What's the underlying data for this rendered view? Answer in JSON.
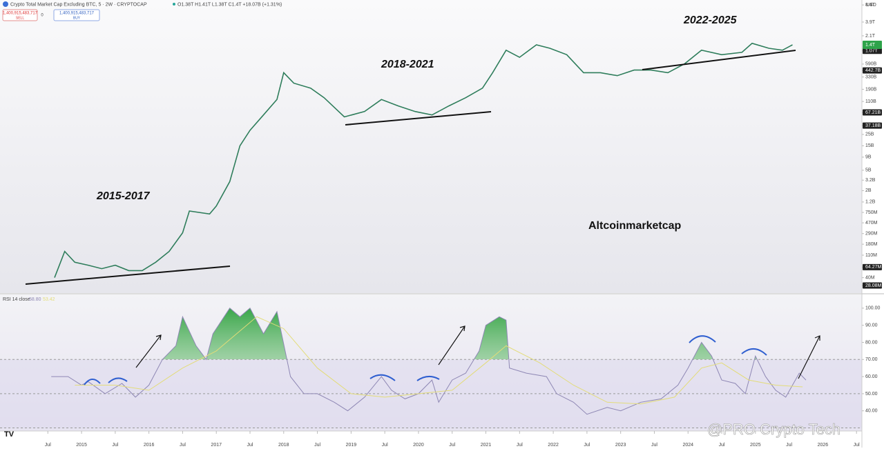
{
  "header": {
    "symbol": "Crypto Total Market Cap Excluding BTC, 5 · 2W · CRYPTOCAP",
    "ohlc": "O1.38T H1.41T L1.38T C1.4T +18.07B (+1.31%)",
    "sell_price": "1,400,915,483,717",
    "sell": "SELL",
    "spread": "0",
    "buy_price": "1,400,915,483,717",
    "buy": "BUY",
    "currency": "USD"
  },
  "chart_data": [
    {
      "type": "line",
      "log_scale": true,
      "color": "#2e7d5b",
      "x": [
        2014.6,
        2014.75,
        2014.9,
        2015.1,
        2015.3,
        2015.5,
        2015.7,
        2015.9,
        2016.1,
        2016.3,
        2016.5,
        2016.6,
        2016.9,
        2017.0,
        2017.2,
        2017.35,
        2017.5,
        2017.7,
        2017.9,
        2018.0,
        2018.15,
        2018.4,
        2018.6,
        2018.9,
        2019.2,
        2019.45,
        2019.7,
        2019.95,
        2020.2,
        2020.45,
        2020.7,
        2020.95,
        2021.1,
        2021.3,
        2021.5,
        2021.75,
        2021.95,
        2022.2,
        2022.45,
        2022.7,
        2022.95,
        2023.2,
        2023.45,
        2023.7,
        2023.95,
        2024.2,
        2024.5,
        2024.8,
        2024.95,
        2025.2,
        2025.4,
        2025.55
      ],
      "values": [
        40000000,
        130000000,
        80000000,
        70000000,
        60000000,
        70000000,
        55000000,
        55000000,
        80000000,
        130000000,
        300000000,
        800000000,
        700000000,
        1000000000,
        3000000000,
        15000000000,
        30000000000,
        60000000000,
        120000000000,
        400000000000,
        250000000000,
        200000000000,
        130000000000,
        55000000000,
        70000000000,
        120000000000,
        90000000000,
        70000000000,
        60000000000,
        90000000000,
        130000000000,
        200000000000,
        400000000000,
        1100000000000,
        800000000000,
        1400000000000,
        1200000000000,
        900000000000,
        400000000000,
        400000000000,
        350000000000,
        450000000000,
        450000000000,
        400000000000,
        600000000000,
        1100000000000,
        900000000000,
        1000000000000,
        1500000000000,
        1200000000000,
        1100000000000,
        1400000000000
      ],
      "xlim": [
        2013.79,
        2026.58
      ],
      "xticks": [
        {
          "value": 2014.5,
          "label": "Jul"
        },
        2015,
        {
          "value": 2015.5,
          "label": "Jul"
        },
        2016,
        {
          "value": 2016.5,
          "label": "Jul"
        },
        2017,
        {
          "value": 2017.5,
          "label": "Jul"
        },
        2018,
        {
          "value": 2018.5,
          "label": "Jul"
        },
        2019,
        {
          "value": 2019.5,
          "label": "Jul"
        },
        2020,
        {
          "value": 2020.5,
          "label": "Jul"
        },
        2021,
        {
          "value": 2021.5,
          "label": "Jul"
        },
        2022,
        {
          "value": 2022.5,
          "label": "Jul"
        },
        2023,
        {
          "value": 2023.5,
          "label": "Jul"
        },
        2024,
        {
          "value": 2024.5,
          "label": "Jul"
        },
        2025,
        {
          "value": 2025.5,
          "label": "Jul"
        },
        2026,
        {
          "value": 2026.5,
          "label": "Jul"
        }
      ],
      "ylim": [
        20000000,
        10500000000000
      ],
      "yticks": [
        {
          "value": 8400000000000,
          "label": "8.4T"
        },
        {
          "value": 3900000000000,
          "label": "3.9T"
        },
        {
          "value": 2100000000000,
          "label": "2.1T"
        },
        {
          "value": 1070000000000,
          "label": "1.07T",
          "boxed": true
        },
        {
          "value": 590000000000,
          "label": "590B"
        },
        {
          "value": 442700000000,
          "label": "442.7B",
          "boxed": true
        },
        {
          "value": 330000000000,
          "label": "330B"
        },
        {
          "value": 190000000000,
          "label": "190B"
        },
        {
          "value": 110000000000,
          "label": "110B"
        },
        {
          "value": 67210000000,
          "label": "67.21B",
          "boxed": true
        },
        {
          "value": 37180000000,
          "label": "37.18B",
          "boxed": true
        },
        {
          "value": 25000000000,
          "label": "25B"
        },
        {
          "value": 15000000000,
          "label": "15B"
        },
        {
          "value": 9000000000,
          "label": "9B"
        },
        {
          "value": 5000000000,
          "label": "5B"
        },
        {
          "value": 3200000000,
          "label": "3.2B"
        },
        {
          "value": 2000000000,
          "label": "2B"
        },
        {
          "value": 1200000000,
          "label": "1.2B"
        },
        {
          "value": 750000000,
          "label": "750M"
        },
        {
          "value": 470000000,
          "label": "470M"
        },
        {
          "value": 290000000,
          "label": "290M"
        },
        {
          "value": 180000000,
          "label": "180M"
        },
        {
          "value": 110000000,
          "label": "110M"
        },
        {
          "value": 64270000,
          "label": "64.27M",
          "boxed": true
        },
        {
          "value": 40000000,
          "label": "40M"
        },
        {
          "value": 28080000,
          "label": "28.08M",
          "boxed": true
        }
      ],
      "last_price": {
        "value": 1400000000000,
        "label": "1.4T"
      },
      "annotations": [
        "2015-2017",
        "2018-2021",
        "2022-2025",
        "Altcoinmarketcap"
      ]
    },
    {
      "type": "line",
      "title": "RSI 14 close",
      "legend_values": [
        "58.80",
        "53.42"
      ],
      "series": [
        {
          "color": "#8e87b4",
          "x": [
            2014.55,
            2014.8,
            2015.0,
            2015.1,
            2015.35,
            2015.6,
            2015.8,
            2016.0,
            2016.2,
            2016.4,
            2016.5,
            2016.7,
            2016.85,
            2016.95,
            2017.2,
            2017.35,
            2017.5,
            2017.7,
            2017.9,
            2018.1,
            2018.3,
            2018.5,
            2018.75,
            2018.95,
            2019.2,
            2019.45,
            2019.6,
            2019.8,
            2020.0,
            2020.2,
            2020.3,
            2020.5,
            2020.7,
            2020.9,
            2021.0,
            2021.2,
            2021.3,
            2021.35,
            2021.6,
            2021.9,
            2022.05,
            2022.3,
            2022.5,
            2022.8,
            2023.0,
            2023.3,
            2023.6,
            2023.85,
            2024.0,
            2024.2,
            2024.35,
            2024.5,
            2024.7,
            2024.85,
            2025.0,
            2025.15,
            2025.3,
            2025.45,
            2025.55,
            2025.65,
            2025.75
          ],
          "values": [
            60,
            60,
            55,
            57,
            50,
            56,
            48,
            55,
            70,
            78,
            95,
            78,
            70,
            85,
            100,
            95,
            100,
            85,
            98,
            60,
            50,
            50,
            45,
            40,
            48,
            60,
            52,
            47,
            50,
            58,
            45,
            58,
            62,
            75,
            90,
            95,
            93,
            65,
            62,
            60,
            50,
            45,
            38,
            42,
            40,
            45,
            47,
            55,
            65,
            80,
            72,
            58,
            56,
            50,
            72,
            60,
            52,
            48,
            55,
            62,
            58
          ]
        },
        {
          "color": "#e3dc78",
          "x": [
            2014.9,
            2015.5,
            2016.0,
            2016.5,
            2017.0,
            2017.6,
            2018.0,
            2018.5,
            2019.0,
            2019.5,
            2020.0,
            2020.5,
            2021.0,
            2021.3,
            2021.8,
            2022.3,
            2022.8,
            2023.3,
            2023.8,
            2024.2,
            2024.5,
            2024.9,
            2025.3,
            2025.7
          ],
          "values": [
            55,
            55,
            52,
            65,
            75,
            95,
            88,
            65,
            50,
            48,
            50,
            52,
            68,
            78,
            68,
            55,
            45,
            44,
            48,
            65,
            68,
            58,
            55,
            54
          ]
        }
      ],
      "ylim": [
        28.2,
        108
      ],
      "yticks": [
        {
          "value": 100,
          "label": "100.00"
        },
        {
          "value": 90,
          "label": "90.00"
        },
        {
          "value": 80,
          "label": "80.00"
        },
        {
          "value": 70,
          "label": "70.00"
        },
        {
          "value": 60,
          "label": "60.00"
        },
        {
          "value": 50,
          "label": "50.00"
        },
        {
          "value": 40,
          "label": "40.00"
        }
      ],
      "reference_lines": [
        70,
        50,
        30
      ]
    }
  ],
  "watermark": "@PRO Crypto Tech"
}
